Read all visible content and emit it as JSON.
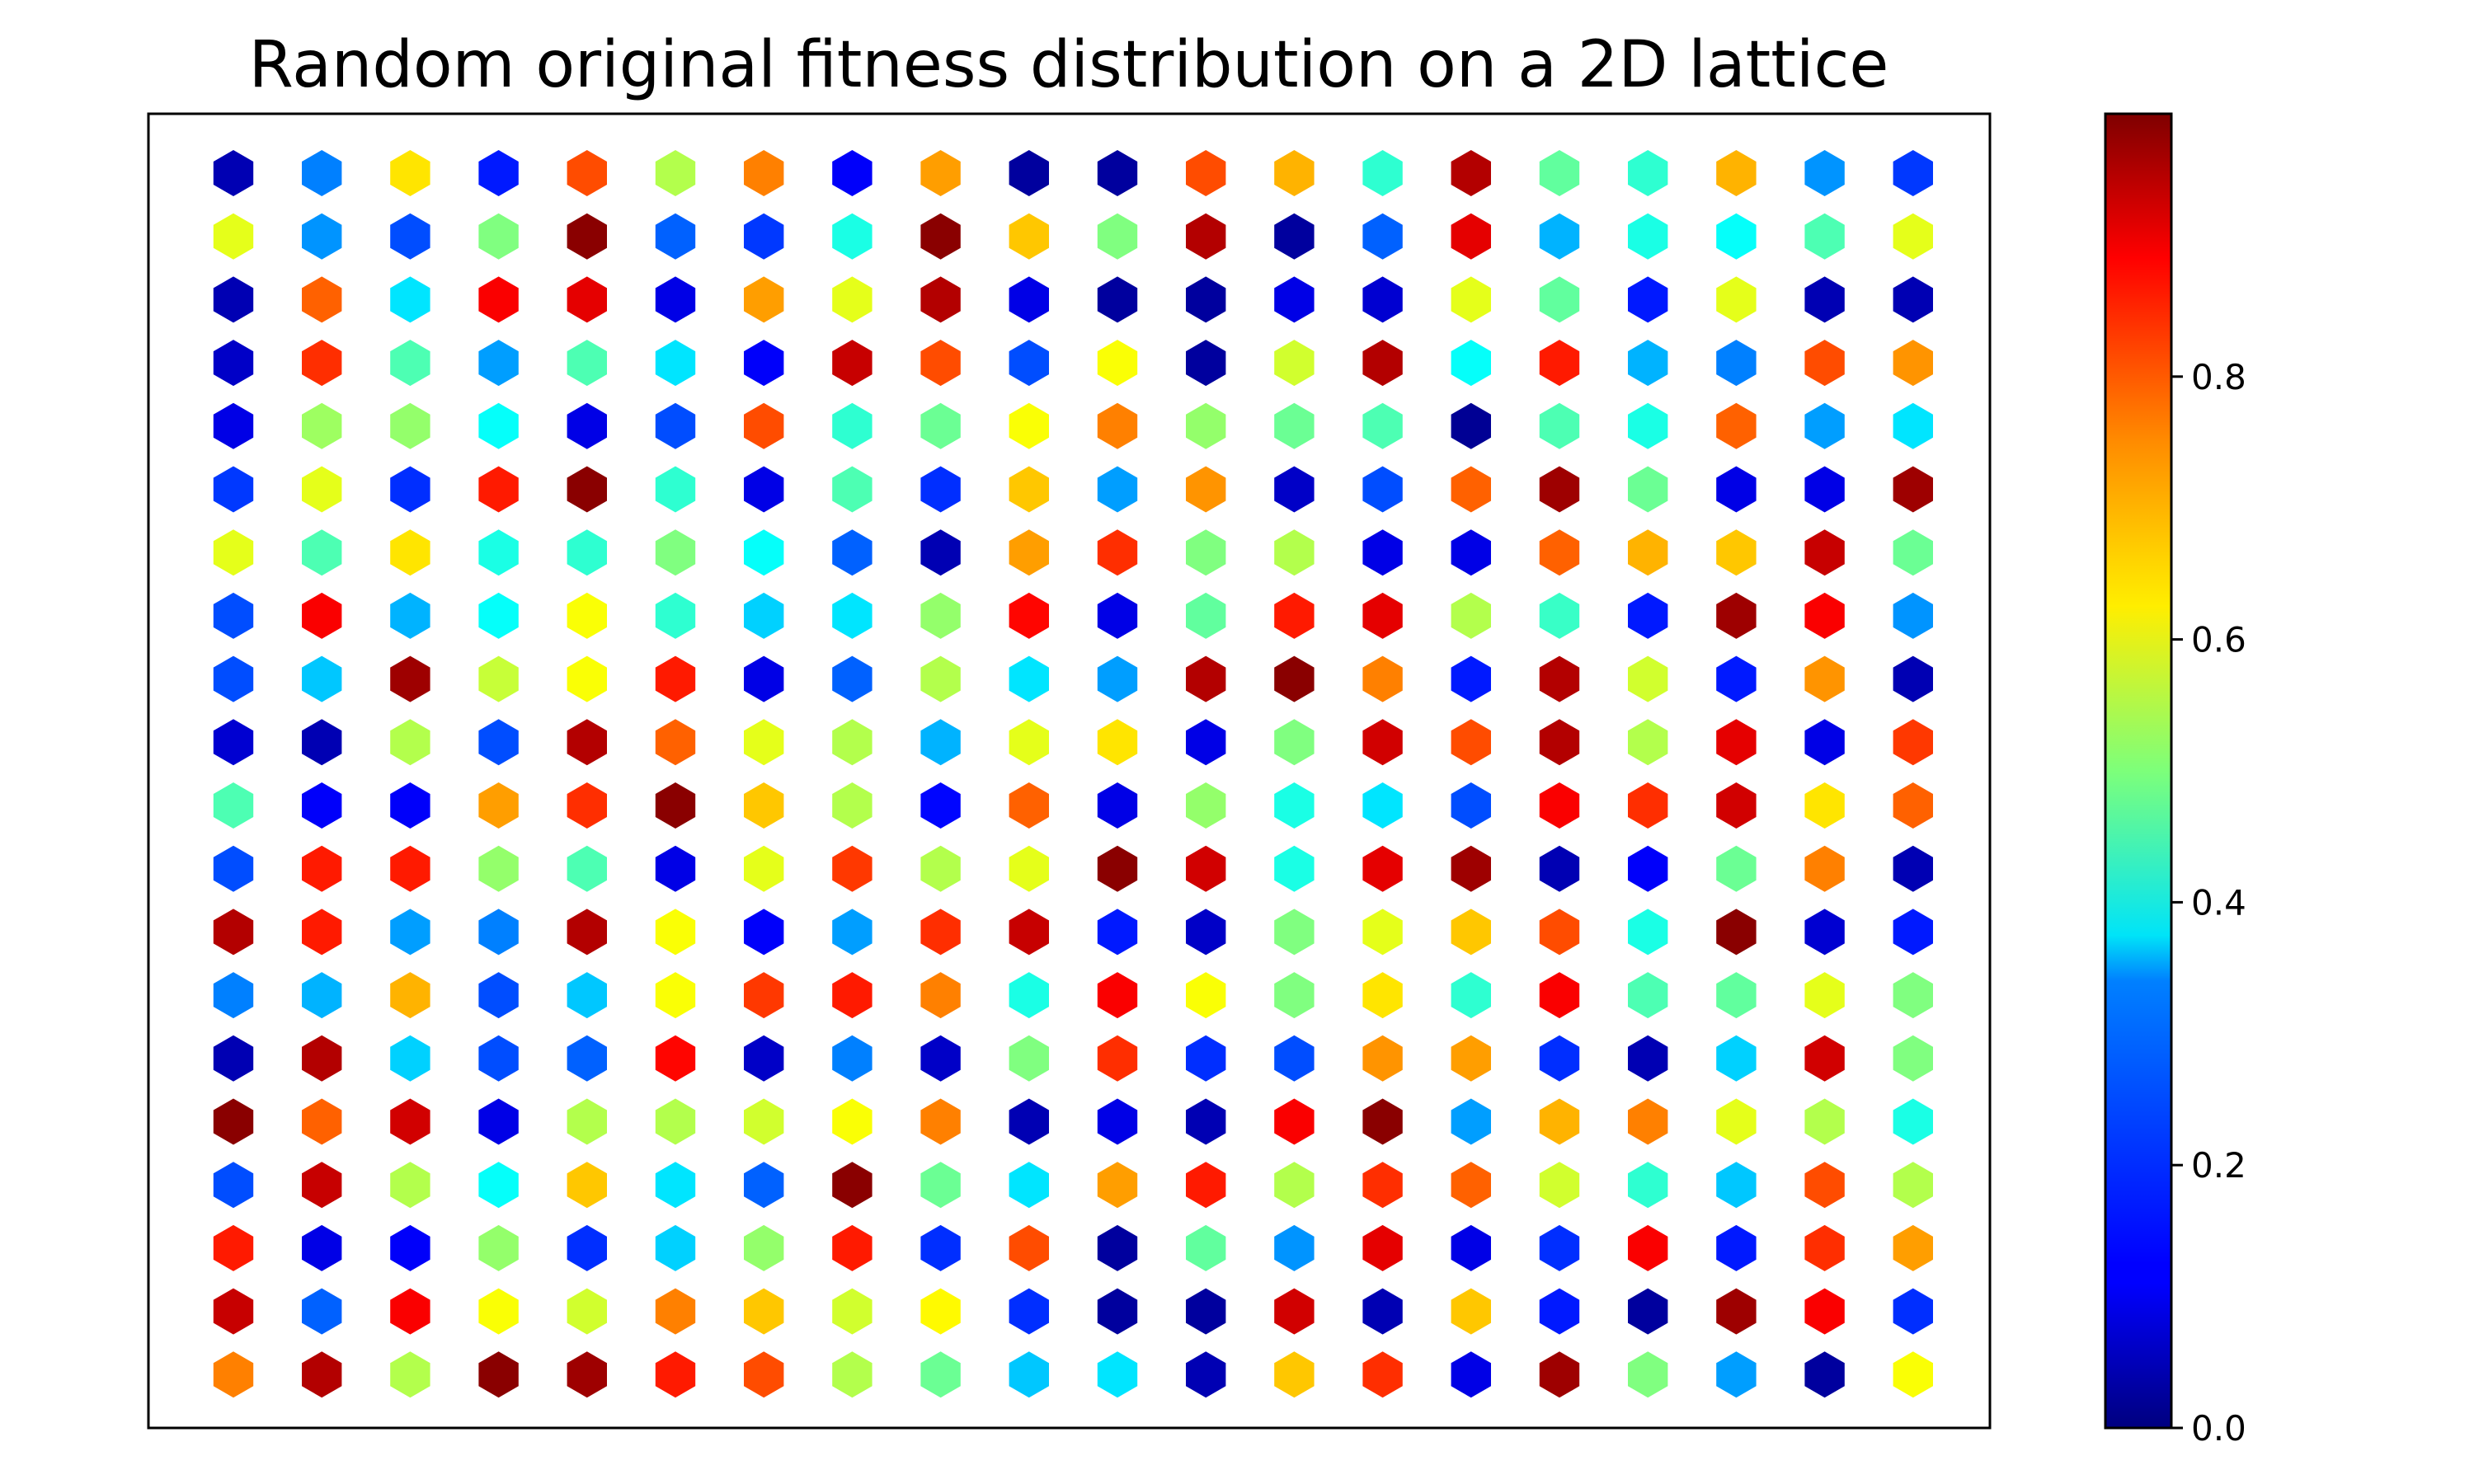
{
  "chart_data": {
    "type": "heatmap",
    "marker": "hexagon",
    "title": "Random original fitness distribution on a 2D lattice",
    "xlabel": "",
    "ylabel": "",
    "colormap": "jet",
    "clim": [
      0,
      1
    ],
    "colorbar": {
      "ticks": [
        0.0,
        0.2,
        0.4,
        0.6,
        0.8
      ],
      "tick_labels": [
        "0.0",
        "0.2",
        "0.4",
        "0.6",
        "0.8"
      ]
    },
    "grid": false,
    "axes_ticks_visible": false,
    "rows": 20,
    "cols": 20,
    "values": [
      [
        0.05,
        0.25,
        0.65,
        0.15,
        0.8,
        0.55,
        0.75,
        0.12,
        0.72,
        0.03,
        0.03,
        0.8,
        0.7,
        0.42,
        0.95,
        0.47,
        0.42,
        0.7,
        0.27,
        0.18
      ],
      [
        0.6,
        0.27,
        0.2,
        0.5,
        0.99,
        0.22,
        0.18,
        0.4,
        0.99,
        0.68,
        0.5,
        0.95,
        0.03,
        0.22,
        0.9,
        0.3,
        0.4,
        0.38,
        0.45,
        0.6
      ],
      [
        0.05,
        0.78,
        0.35,
        0.88,
        0.9,
        0.1,
        0.72,
        0.6,
        0.95,
        0.1,
        0.03,
        0.03,
        0.1,
        0.08,
        0.6,
        0.47,
        0.15,
        0.6,
        0.05,
        0.05
      ],
      [
        0.07,
        0.83,
        0.45,
        0.28,
        0.45,
        0.35,
        0.12,
        0.93,
        0.8,
        0.2,
        0.62,
        0.03,
        0.58,
        0.95,
        0.38,
        0.85,
        0.3,
        0.25,
        0.8,
        0.73
      ],
      [
        0.1,
        0.53,
        0.52,
        0.38,
        0.1,
        0.2,
        0.8,
        0.42,
        0.48,
        0.62,
        0.75,
        0.52,
        0.48,
        0.45,
        0.02,
        0.45,
        0.4,
        0.78,
        0.28,
        0.35
      ],
      [
        0.18,
        0.6,
        0.17,
        0.85,
        0.99,
        0.42,
        0.1,
        0.45,
        0.17,
        0.68,
        0.28,
        0.73,
        0.07,
        0.2,
        0.78,
        0.97,
        0.48,
        0.1,
        0.1,
        0.97
      ],
      [
        0.6,
        0.45,
        0.65,
        0.4,
        0.42,
        0.5,
        0.38,
        0.22,
        0.05,
        0.72,
        0.83,
        0.5,
        0.55,
        0.1,
        0.1,
        0.78,
        0.7,
        0.68,
        0.93,
        0.48
      ],
      [
        0.2,
        0.88,
        0.3,
        0.38,
        0.62,
        0.42,
        0.33,
        0.35,
        0.52,
        0.87,
        0.1,
        0.47,
        0.85,
        0.9,
        0.55,
        0.43,
        0.15,
        0.97,
        0.88,
        0.27
      ],
      [
        0.2,
        0.32,
        0.97,
        0.57,
        0.62,
        0.85,
        0.1,
        0.22,
        0.55,
        0.35,
        0.28,
        0.95,
        0.99,
        0.75,
        0.15,
        0.95,
        0.58,
        0.15,
        0.73,
        0.05
      ],
      [
        0.08,
        0.05,
        0.55,
        0.2,
        0.95,
        0.78,
        0.6,
        0.55,
        0.3,
        0.6,
        0.65,
        0.1,
        0.5,
        0.92,
        0.8,
        0.95,
        0.55,
        0.9,
        0.1,
        0.82
      ],
      [
        0.45,
        0.12,
        0.12,
        0.72,
        0.83,
        0.99,
        0.68,
        0.55,
        0.13,
        0.78,
        0.1,
        0.52,
        0.4,
        0.35,
        0.2,
        0.88,
        0.83,
        0.92,
        0.65,
        0.78
      ],
      [
        0.2,
        0.85,
        0.85,
        0.52,
        0.45,
        0.1,
        0.6,
        0.82,
        0.55,
        0.6,
        0.99,
        0.92,
        0.4,
        0.9,
        0.97,
        0.05,
        0.12,
        0.48,
        0.75,
        0.05
      ],
      [
        0.95,
        0.85,
        0.28,
        0.25,
        0.95,
        0.62,
        0.12,
        0.28,
        0.83,
        0.93,
        0.15,
        0.07,
        0.5,
        0.6,
        0.68,
        0.8,
        0.4,
        0.99,
        0.08,
        0.15
      ],
      [
        0.25,
        0.3,
        0.7,
        0.2,
        0.32,
        0.62,
        0.82,
        0.85,
        0.75,
        0.4,
        0.88,
        0.62,
        0.5,
        0.65,
        0.42,
        0.88,
        0.45,
        0.47,
        0.6,
        0.5
      ],
      [
        0.05,
        0.95,
        0.33,
        0.2,
        0.22,
        0.87,
        0.07,
        0.25,
        0.07,
        0.5,
        0.83,
        0.17,
        0.2,
        0.73,
        0.72,
        0.17,
        0.05,
        0.33,
        0.92,
        0.5
      ],
      [
        0.99,
        0.78,
        0.92,
        0.1,
        0.55,
        0.55,
        0.58,
        0.62,
        0.75,
        0.05,
        0.1,
        0.05,
        0.88,
        0.99,
        0.28,
        0.7,
        0.75,
        0.6,
        0.55,
        0.4
      ],
      [
        0.2,
        0.93,
        0.55,
        0.38,
        0.68,
        0.35,
        0.22,
        0.99,
        0.48,
        0.35,
        0.72,
        0.85,
        0.55,
        0.83,
        0.78,
        0.58,
        0.42,
        0.32,
        0.8,
        0.55
      ],
      [
        0.85,
        0.1,
        0.12,
        0.52,
        0.17,
        0.33,
        0.52,
        0.85,
        0.17,
        0.8,
        0.03,
        0.47,
        0.27,
        0.9,
        0.1,
        0.17,
        0.88,
        0.15,
        0.83,
        0.72
      ],
      [
        0.93,
        0.22,
        0.88,
        0.62,
        0.58,
        0.75,
        0.68,
        0.58,
        0.63,
        0.17,
        0.03,
        0.03,
        0.92,
        0.05,
        0.68,
        0.15,
        0.03,
        0.97,
        0.88,
        0.17
      ],
      [
        0.75,
        0.95,
        0.55,
        0.99,
        0.97,
        0.85,
        0.8,
        0.55,
        0.48,
        0.32,
        0.35,
        0.05,
        0.68,
        0.83,
        0.1,
        0.97,
        0.5,
        0.28,
        0.03,
        0.62
      ]
    ]
  }
}
